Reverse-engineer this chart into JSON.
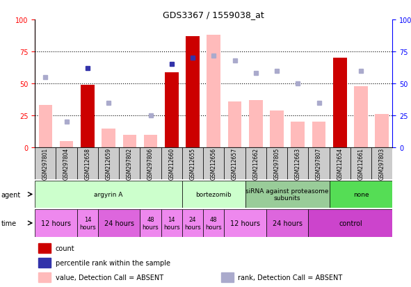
{
  "title": "GDS3367 / 1559038_at",
  "samples": [
    "GSM297801",
    "GSM297804",
    "GSM212658",
    "GSM212659",
    "GSM297802",
    "GSM297806",
    "GSM212660",
    "GSM212655",
    "GSM212656",
    "GSM212657",
    "GSM212662",
    "GSM297805",
    "GSM212663",
    "GSM297807",
    "GSM212654",
    "GSM212661",
    "GSM297803"
  ],
  "count_present": [
    0,
    0,
    49,
    0,
    0,
    0,
    59,
    87,
    0,
    0,
    0,
    0,
    0,
    0,
    70,
    0,
    0
  ],
  "count_absent": [
    33,
    5,
    0,
    15,
    10,
    10,
    0,
    0,
    88,
    36,
    37,
    29,
    20,
    20,
    0,
    48,
    26
  ],
  "rank_absent": [
    55,
    20,
    0,
    35,
    0,
    25,
    0,
    0,
    72,
    68,
    58,
    60,
    50,
    35,
    0,
    60,
    0
  ],
  "rank_present": [
    0,
    0,
    62,
    0,
    0,
    0,
    65,
    70,
    0,
    0,
    0,
    0,
    0,
    0,
    0,
    0,
    0
  ],
  "agents": [
    {
      "label": "argyrin A",
      "start": 0,
      "end": 7,
      "color": "#ccffcc"
    },
    {
      "label": "bortezomib",
      "start": 7,
      "end": 10,
      "color": "#ccffcc"
    },
    {
      "label": "siRNA against proteasome\nsubunits",
      "start": 10,
      "end": 14,
      "color": "#99cc99"
    },
    {
      "label": "none",
      "start": 14,
      "end": 17,
      "color": "#55dd55"
    }
  ],
  "times": [
    {
      "label": "12 hours",
      "start": 0,
      "end": 2,
      "color": "#ee88ee",
      "fontsize": 7
    },
    {
      "label": "14\nhours",
      "start": 2,
      "end": 3,
      "color": "#ee88ee",
      "fontsize": 6
    },
    {
      "label": "24 hours",
      "start": 3,
      "end": 5,
      "color": "#dd66dd",
      "fontsize": 7
    },
    {
      "label": "48\nhours",
      "start": 5,
      "end": 6,
      "color": "#ee88ee",
      "fontsize": 6
    },
    {
      "label": "14\nhours",
      "start": 6,
      "end": 7,
      "color": "#ee88ee",
      "fontsize": 6
    },
    {
      "label": "24\nhours",
      "start": 7,
      "end": 8,
      "color": "#ee88ee",
      "fontsize": 6
    },
    {
      "label": "48\nhours",
      "start": 8,
      "end": 9,
      "color": "#ee88ee",
      "fontsize": 6
    },
    {
      "label": "12 hours",
      "start": 9,
      "end": 11,
      "color": "#ee88ee",
      "fontsize": 7
    },
    {
      "label": "24 hours",
      "start": 11,
      "end": 13,
      "color": "#dd66dd",
      "fontsize": 7
    },
    {
      "label": "control",
      "start": 13,
      "end": 17,
      "color": "#cc44cc",
      "fontsize": 7
    }
  ],
  "bar_color_present": "#cc0000",
  "bar_color_absent": "#ffbbbb",
  "dot_color_rank_absent": "#aaaacc",
  "dot_color_rank_present": "#3333aa"
}
